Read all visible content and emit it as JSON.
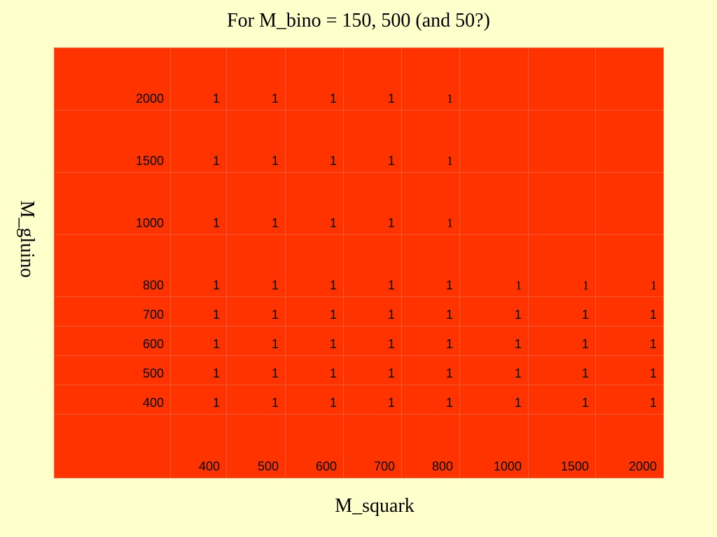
{
  "title": "For M_bino = 150, 500 (and 50?)",
  "xlabel": "M_squark",
  "ylabel": "M_gluino",
  "colors": {
    "background": "#ffffcc",
    "table_fill": "#ff3300",
    "grid_line": "#ff5a33"
  },
  "table": {
    "col_headers": [
      "400",
      "500",
      "600",
      "700",
      "800",
      "1000",
      "1500",
      "2000"
    ],
    "rows": [
      {
        "label": "2000",
        "cells": [
          "1",
          "1",
          "1",
          "1",
          "1",
          "",
          "",
          ""
        ]
      },
      {
        "label": "1500",
        "cells": [
          "1",
          "1",
          "1",
          "1",
          "1",
          "",
          "",
          ""
        ]
      },
      {
        "label": "1000",
        "cells": [
          "1",
          "1",
          "1",
          "1",
          "1",
          "",
          "",
          ""
        ]
      },
      {
        "label": "800",
        "cells": [
          "1",
          "1",
          "1",
          "1",
          "1",
          "1",
          "1",
          "1"
        ]
      },
      {
        "label": "700",
        "cells": [
          "1",
          "1",
          "1",
          "1",
          "1",
          "1",
          "1",
          "1"
        ]
      },
      {
        "label": "600",
        "cells": [
          "1",
          "1",
          "1",
          "1",
          "1",
          "1",
          "1",
          "1"
        ]
      },
      {
        "label": "500",
        "cells": [
          "1",
          "1",
          "1",
          "1",
          "1",
          "1",
          "1",
          "1"
        ]
      },
      {
        "label": "400",
        "cells": [
          "1",
          "1",
          "1",
          "1",
          "1",
          "1",
          "1",
          "1"
        ]
      }
    ]
  }
}
